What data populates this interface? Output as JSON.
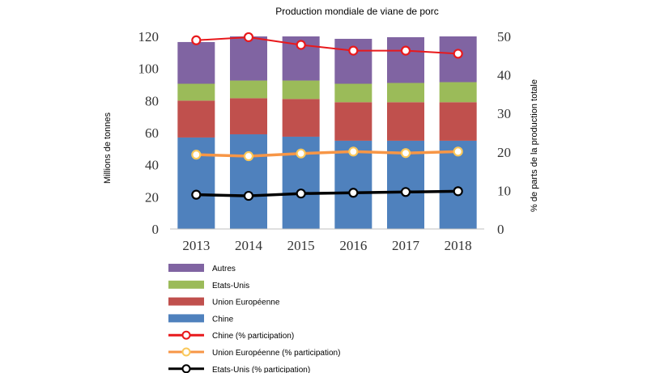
{
  "chart_data": {
    "type": "bar",
    "title": "Production mondiale de viane de porc",
    "ylabel_left": "Millions de tonnes",
    "ylabel_right": "% de parts de la production totale",
    "categories": [
      "2013",
      "2014",
      "2015",
      "2016",
      "2017",
      "2018"
    ],
    "ylim_left": [
      0,
      120
    ],
    "yticks_left": [
      "0",
      "20",
      "40",
      "60",
      "80",
      "100",
      "120"
    ],
    "ylim_right": [
      0,
      50
    ],
    "yticks_right": [
      "0",
      "10",
      "20",
      "30",
      "40",
      "50"
    ],
    "stacked_series": [
      {
        "name": "Chine",
        "color": "#4f81bd",
        "values": [
          57,
          59,
          57.5,
          55,
          55,
          55
        ]
      },
      {
        "name": "Union Européenne",
        "color": "#c0504d",
        "values": [
          23,
          22.5,
          23.5,
          24,
          24,
          24
        ]
      },
      {
        "name": "Etats-Unis",
        "color": "#9bbb59",
        "values": [
          10.5,
          11,
          11.5,
          11.5,
          12,
          12.5
        ]
      },
      {
        "name": "Autres",
        "color": "#8064a2",
        "values": [
          26,
          27.5,
          27.5,
          28,
          28.5,
          28.5
        ]
      }
    ],
    "line_series": [
      {
        "name": "Chine (% participation)",
        "color": "#e8191c",
        "values": [
          49,
          49.8,
          47.8,
          46.3,
          46.3,
          45.5
        ]
      },
      {
        "name": "Union Européenne (% participation)",
        "color": "#f79646",
        "marker_stroke": "#fac85a",
        "values": [
          19.3,
          18.9,
          19.6,
          20.1,
          19.7,
          20.1
        ]
      },
      {
        "name": "Etats-Unis (% participation)",
        "color": "#000000",
        "values": [
          8.9,
          8.6,
          9.2,
          9.4,
          9.6,
          9.8
        ]
      }
    ],
    "legend": [
      {
        "label": "Autres",
        "kind": "bar",
        "color": "#8064a2"
      },
      {
        "label": "Etats-Unis",
        "kind": "bar",
        "color": "#9bbb59"
      },
      {
        "label": "Union Européenne",
        "kind": "bar",
        "color": "#c0504d"
      },
      {
        "label": "Chine",
        "kind": "bar",
        "color": "#4f81bd"
      },
      {
        "label": "Chine (% participation)",
        "kind": "line",
        "color": "#e8191c",
        "marker_stroke": "#e8191c"
      },
      {
        "label": "Union Européenne (% participation)",
        "kind": "line",
        "color": "#f79646",
        "marker_stroke": "#fac85a"
      },
      {
        "label": "Etats-Unis (% participation)",
        "kind": "line",
        "color": "#000000",
        "marker_stroke": "#000000"
      }
    ],
    "legend_position": "bottom-left",
    "grid": false
  }
}
